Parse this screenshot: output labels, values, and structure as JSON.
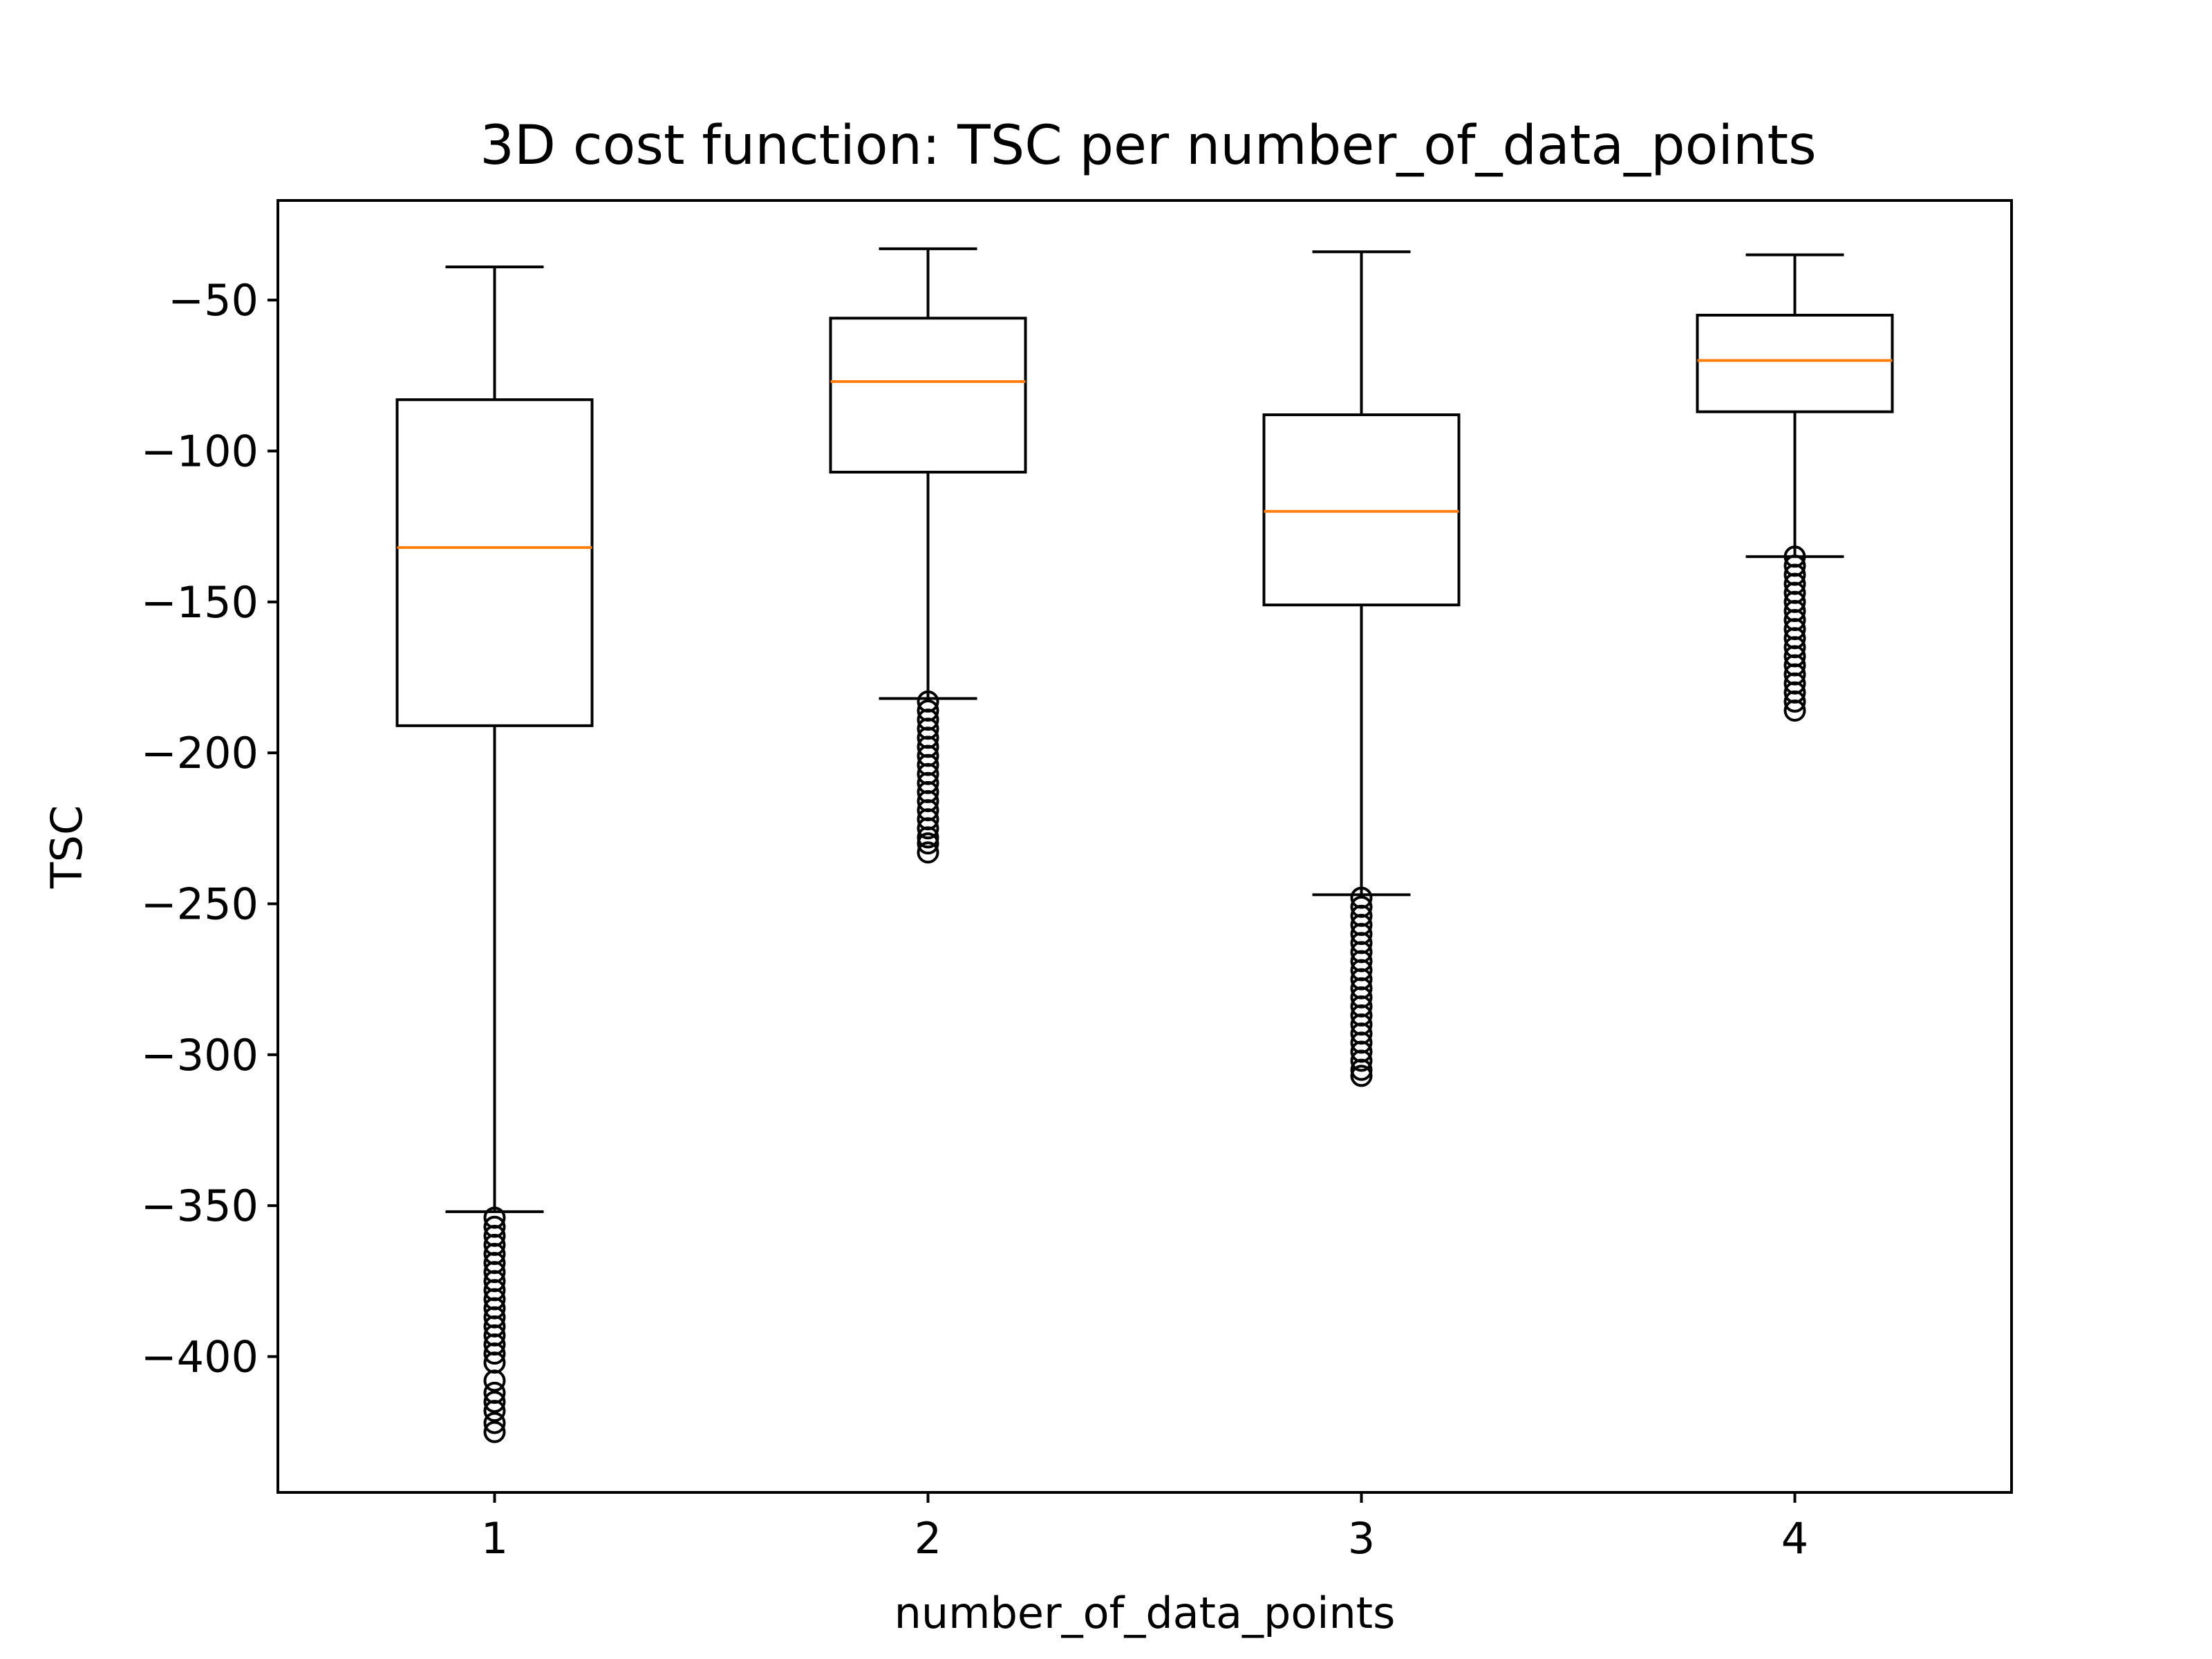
{
  "chart_data": {
    "type": "boxplot",
    "title": "3D cost function: TSC per number_of_data_points",
    "xlabel": "number_of_data_points",
    "ylabel": "TSC",
    "categories": [
      "1",
      "2",
      "3",
      "4"
    ],
    "ylim": [
      -445,
      -17
    ],
    "yticks": [
      -400,
      -350,
      -300,
      -250,
      -200,
      -150,
      -100,
      -50
    ],
    "ytick_labels": [
      "−400",
      "−350",
      "−300",
      "−250",
      "−200",
      "−150",
      "−100",
      "−50"
    ],
    "grid": false,
    "colors": {
      "box": "#000000",
      "median": "#ff7f0e",
      "whisker": "#000000",
      "flier": "#000000"
    },
    "boxes": [
      {
        "category": "1",
        "whisker_low": -352,
        "q1": -191,
        "median": -132,
        "q3": -83,
        "whisker_high": -39,
        "fliers": [
          -354,
          -357,
          -360,
          -363,
          -366,
          -369,
          -372,
          -375,
          -378,
          -381,
          -384,
          -387,
          -390,
          -393,
          -396,
          -399,
          -402,
          -408,
          -412,
          -415,
          -418,
          -422,
          -425
        ]
      },
      {
        "category": "2",
        "whisker_low": -182,
        "q1": -107,
        "median": -77,
        "q3": -56,
        "whisker_high": -33,
        "fliers": [
          -183,
          -186,
          -189,
          -192,
          -195,
          -198,
          -201,
          -204,
          -207,
          -210,
          -213,
          -216,
          -219,
          -222,
          -225,
          -228,
          -230,
          -233
        ]
      },
      {
        "category": "3",
        "whisker_low": -247,
        "q1": -151,
        "median": -120,
        "q3": -88,
        "whisker_high": -34,
        "fliers": [
          -248,
          -251,
          -254,
          -257,
          -260,
          -263,
          -266,
          -269,
          -272,
          -275,
          -278,
          -281,
          -284,
          -287,
          -290,
          -293,
          -296,
          -299,
          -302,
          -305,
          -307
        ]
      },
      {
        "category": "4",
        "whisker_low": -135,
        "q1": -87,
        "median": -70,
        "q3": -55,
        "whisker_high": -35,
        "fliers": [
          -135,
          -138,
          -141,
          -144,
          -147,
          -150,
          -153,
          -156,
          -159,
          -162,
          -165,
          -168,
          -171,
          -174,
          -177,
          -180,
          -183,
          -186
        ]
      }
    ]
  }
}
